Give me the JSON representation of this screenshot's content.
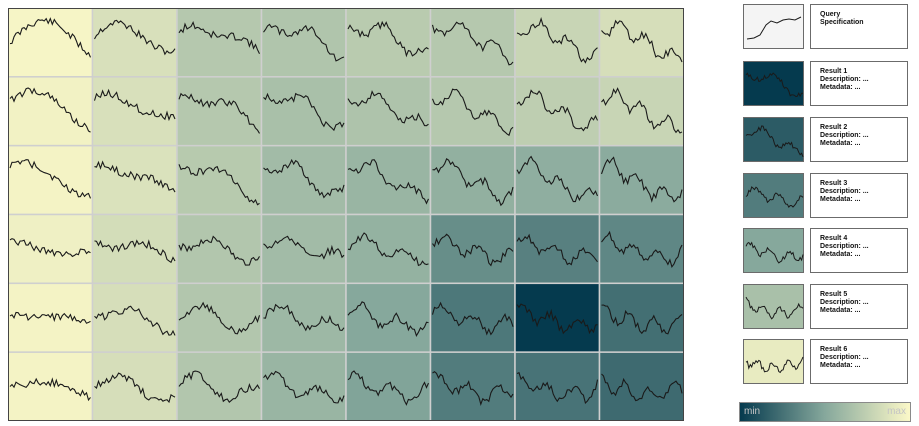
{
  "grid": {
    "rows": 6,
    "cols": 8,
    "values": [
      [
        0.02,
        0.15,
        0.3,
        0.32,
        0.28,
        0.3,
        0.22,
        0.16
      ],
      [
        0.04,
        0.15,
        0.3,
        0.35,
        0.33,
        0.3,
        0.26,
        0.22
      ],
      [
        0.03,
        0.14,
        0.29,
        0.38,
        0.42,
        0.45,
        0.46,
        0.48
      ],
      [
        0.05,
        0.17,
        0.31,
        0.38,
        0.44,
        0.62,
        0.68,
        0.65
      ],
      [
        0.03,
        0.16,
        0.31,
        0.4,
        0.5,
        0.72,
        1.0,
        0.76
      ],
      [
        0.03,
        0.16,
        0.31,
        0.42,
        0.52,
        0.7,
        0.74,
        0.78
      ]
    ]
  },
  "results": [
    {
      "level": null,
      "lines": [
        "Query",
        "Specification"
      ]
    },
    {
      "level": 1.0,
      "lines": [
        "Result 1",
        "Description: ...",
        "Metadata: ..."
      ]
    },
    {
      "level": 0.85,
      "lines": [
        "Result 2",
        "Description: ...",
        "Metadata: ..."
      ]
    },
    {
      "level": 0.7,
      "lines": [
        "Result 3",
        "Description: ...",
        "Metadata: ..."
      ]
    },
    {
      "level": 0.5,
      "lines": [
        "Result 4",
        "Description: ...",
        "Metadata: ..."
      ]
    },
    {
      "level": 0.35,
      "lines": [
        "Result 5",
        "Description: ...",
        "Metadata: ..."
      ]
    },
    {
      "level": 0.08,
      "lines": [
        "Result 6",
        "Description: ...",
        "Metadata: ..."
      ]
    }
  ],
  "legend": {
    "min_label": "min",
    "max_label": "max"
  },
  "colors": {
    "scale_min": "#fbf8c8",
    "scale_mid": "#86a89c",
    "scale_max": "#053a4e",
    "query_bg": "#f4f4f4",
    "line": "#1a1a1a",
    "cell_border": "#cfcfcf"
  }
}
